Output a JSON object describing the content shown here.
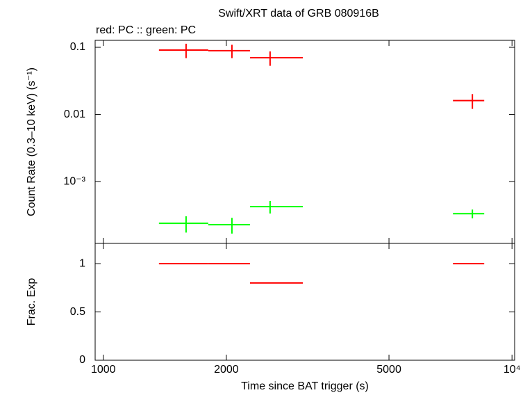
{
  "chart_data": [
    {
      "type": "errorbar",
      "title": "Swift/XRT data of GRB 080916B",
      "subtitle": "red: PC  :: green: PC",
      "ylabel": "Count Rate (0.3–10 keV) (s⁻¹)",
      "log_x": true,
      "log_y": true,
      "xlim": [
        955,
        10150
      ],
      "xticks": [
        1000,
        2000,
        5000,
        {
          "value": 10000,
          "label": "10⁴"
        }
      ],
      "ylim": [
        0.00012,
        0.127
      ],
      "yticks": [
        {
          "value": 0.001,
          "label": "10⁻³"
        },
        0.01,
        0.1
      ],
      "series": [
        {
          "color": "#ff0000",
          "x": [
            1594,
            2064,
            2559,
            8000
          ],
          "x_start": [
            1368,
            1806,
            2285,
            7170
          ],
          "x_end": [
            1806,
            2285,
            3077,
            8551
          ],
          "values": [
            0.091,
            0.089,
            0.07,
            0.0161
          ],
          "yerr": [
            0.022,
            0.02,
            0.017,
            0.004
          ]
        },
        {
          "color": "#00ff00",
          "x": [
            1594,
            2064,
            2559,
            8000
          ],
          "x_start": [
            1368,
            1806,
            2285,
            7170
          ],
          "x_end": [
            1806,
            2285,
            3077,
            8551
          ],
          "values": [
            0.000239,
            0.000228,
            0.000424,
            0.000333
          ],
          "yerr": [
            6.5e-05,
            6e-05,
            9e-05,
            5e-05
          ]
        }
      ]
    },
    {
      "type": "errorbar",
      "ylabel": "Frac. Exp",
      "xlabel": "Time since BAT trigger (s)",
      "log_x": true,
      "log_y": false,
      "xlim": [
        955,
        10150
      ],
      "xticks": [
        1000,
        2000,
        5000,
        {
          "value": 10000,
          "label": "10⁴"
        }
      ],
      "ylim": [
        0,
        1.21
      ],
      "yticks": [
        0,
        0.5,
        1
      ],
      "series": [
        {
          "color": "#ff0000",
          "x_start": [
            1368,
            1806,
            2285,
            7170
          ],
          "x_end": [
            1806,
            2285,
            3077,
            8551
          ],
          "values": [
            1,
            1,
            0.8,
            1
          ]
        }
      ]
    }
  ]
}
